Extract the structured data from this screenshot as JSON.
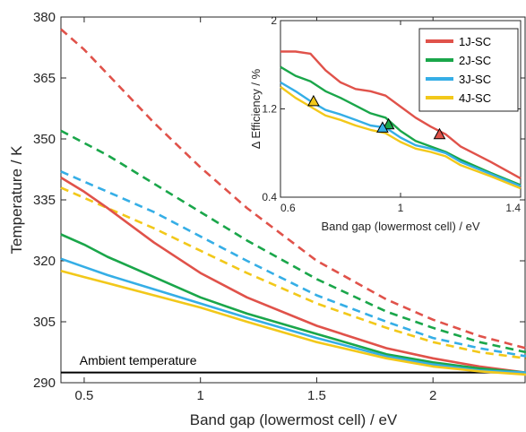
{
  "chart_data": [
    {
      "type": "line",
      "xlabel": "Band gap (lowermost cell) / eV",
      "ylabel": "Temperature / K",
      "xlim": [
        0.4,
        2.4
      ],
      "ylim": [
        290,
        380
      ],
      "xticks": [
        0.5,
        1,
        1.5,
        2
      ],
      "xtick_labels": [
        "0.5",
        "1",
        "1.5",
        "2"
      ],
      "yticks": [
        290,
        305,
        320,
        335,
        350,
        365,
        380
      ],
      "ytick_labels": [
        "290",
        "305",
        "320",
        "335",
        "350",
        "365",
        "380"
      ],
      "grid": false,
      "annotation": {
        "text": "Ambient temperature",
        "x": 0.48,
        "y": 293.5
      },
      "reference_line": {
        "y": 292.5,
        "color": "#000000"
      },
      "series": [
        {
          "name": "1J-SC",
          "style": "solid",
          "color": "#e0524a",
          "x": [
            0.4,
            0.5,
            0.6,
            0.8,
            1.0,
            1.2,
            1.5,
            1.8,
            2.0,
            2.2,
            2.4
          ],
          "y": [
            340.5,
            337,
            333,
            324.5,
            317,
            311,
            304,
            298.5,
            296,
            294,
            292.5
          ]
        },
        {
          "name": "2J-SC",
          "style": "solid",
          "color": "#1aa64a",
          "x": [
            0.4,
            0.5,
            0.6,
            0.8,
            1.0,
            1.2,
            1.5,
            1.8,
            2.0,
            2.2,
            2.4
          ],
          "y": [
            326.5,
            324,
            321,
            316,
            311,
            307,
            302,
            297,
            295,
            293.5,
            292.5
          ]
        },
        {
          "name": "3J-SC",
          "style": "solid",
          "color": "#35aee6",
          "x": [
            0.4,
            0.5,
            0.6,
            0.8,
            1.0,
            1.2,
            1.5,
            1.8,
            2.0,
            2.2,
            2.4
          ],
          "y": [
            320.5,
            318.5,
            316.5,
            313,
            309.5,
            306,
            301,
            296.5,
            294.5,
            293,
            292.5
          ]
        },
        {
          "name": "4J-SC",
          "style": "solid",
          "color": "#f2c81a",
          "x": [
            0.4,
            0.5,
            0.6,
            0.8,
            1.0,
            1.2,
            1.5,
            1.8,
            2.0,
            2.2,
            2.4
          ],
          "y": [
            317.5,
            316,
            314.5,
            311.5,
            308.5,
            305,
            300,
            296,
            294,
            292.8,
            292
          ]
        },
        {
          "name": "1J-SC (dashed)",
          "style": "dashed",
          "color": "#e0524a",
          "x": [
            0.4,
            0.5,
            0.6,
            0.8,
            1.0,
            1.2,
            1.5,
            1.8,
            2.0,
            2.2,
            2.4
          ],
          "y": [
            377,
            372,
            366,
            354,
            343,
            333,
            320,
            310.5,
            305.5,
            301.5,
            298.5
          ]
        },
        {
          "name": "2J-SC (dashed)",
          "style": "dashed",
          "color": "#1aa64a",
          "x": [
            0.4,
            0.5,
            0.6,
            0.8,
            1.0,
            1.2,
            1.5,
            1.8,
            2.0,
            2.2,
            2.4
          ],
          "y": [
            352,
            349,
            346,
            339,
            332,
            325,
            315.5,
            307.5,
            303.5,
            300,
            297.5
          ]
        },
        {
          "name": "3J-SC (dashed)",
          "style": "dashed",
          "color": "#35aee6",
          "x": [
            0.4,
            0.5,
            0.6,
            0.8,
            1.0,
            1.2,
            1.5,
            1.8,
            2.0,
            2.2,
            2.4
          ],
          "y": [
            342,
            339.5,
            337,
            332,
            326,
            320,
            311.5,
            305,
            301,
            298.5,
            296.5
          ]
        },
        {
          "name": "4J-SC (dashed)",
          "style": "dashed",
          "color": "#f2c81a",
          "x": [
            0.4,
            0.5,
            0.6,
            0.8,
            1.0,
            1.2,
            1.5,
            1.8,
            2.0,
            2.2,
            2.4
          ],
          "y": [
            338,
            335.5,
            333,
            328,
            322.5,
            317,
            309.5,
            303.5,
            300,
            297.5,
            296
          ]
        }
      ]
    },
    {
      "type": "line",
      "xlabel": "Band gap (lowermost cell) / eV",
      "ylabel": "Δ Efficiency / %",
      "xlim": [
        0.6,
        1.4
      ],
      "ylim": [
        0.4,
        2.0
      ],
      "xticks": [
        0.6,
        1.0,
        1.4
      ],
      "xtick_labels": [
        "0.6",
        "1",
        "1.4"
      ],
      "yticks": [
        0.4,
        1.2,
        2.0
      ],
      "ytick_labels": [
        "0.4",
        "1.2",
        "2"
      ],
      "grid": false,
      "legend": {
        "placement": "top-right",
        "entries": [
          "1J-SC",
          "2J-SC",
          "3J-SC",
          "4J-SC"
        ]
      },
      "series": [
        {
          "name": "1J-SC",
          "color": "#e0524a",
          "x": [
            0.6,
            0.65,
            0.7,
            0.75,
            0.8,
            0.85,
            0.9,
            0.95,
            1.0,
            1.05,
            1.1,
            1.15,
            1.2,
            1.3,
            1.4
          ],
          "y": [
            1.72,
            1.72,
            1.7,
            1.55,
            1.44,
            1.38,
            1.36,
            1.32,
            1.22,
            1.12,
            1.04,
            0.97,
            0.86,
            0.72,
            0.57
          ],
          "marker": {
            "x": 1.13,
            "y": 0.97
          }
        },
        {
          "name": "2J-SC",
          "color": "#1aa64a",
          "x": [
            0.6,
            0.65,
            0.7,
            0.75,
            0.8,
            0.85,
            0.9,
            0.95,
            1.0,
            1.05,
            1.1,
            1.15,
            1.2,
            1.3,
            1.4
          ],
          "y": [
            1.58,
            1.5,
            1.45,
            1.36,
            1.3,
            1.23,
            1.16,
            1.12,
            1.0,
            0.91,
            0.86,
            0.81,
            0.74,
            0.62,
            0.51
          ],
          "marker": {
            "x": 0.96,
            "y": 1.06
          }
        },
        {
          "name": "3J-SC",
          "color": "#35aee6",
          "x": [
            0.6,
            0.65,
            0.7,
            0.75,
            0.8,
            0.85,
            0.9,
            0.95,
            1.0,
            1.05,
            1.1,
            1.15,
            1.2,
            1.3,
            1.4
          ],
          "y": [
            1.44,
            1.36,
            1.27,
            1.19,
            1.15,
            1.1,
            1.05,
            1.03,
            0.94,
            0.87,
            0.84,
            0.8,
            0.72,
            0.61,
            0.5
          ],
          "marker": {
            "x": 0.94,
            "y": 1.03
          }
        },
        {
          "name": "4J-SC",
          "color": "#f2c81a",
          "x": [
            0.6,
            0.65,
            0.7,
            0.75,
            0.8,
            0.85,
            0.9,
            0.95,
            1.0,
            1.05,
            1.1,
            1.15,
            1.2,
            1.3,
            1.4
          ],
          "y": [
            1.4,
            1.3,
            1.22,
            1.14,
            1.1,
            1.05,
            1.01,
            0.98,
            0.9,
            0.84,
            0.81,
            0.77,
            0.69,
            0.59,
            0.48
          ],
          "marker": {
            "x": 0.71,
            "y": 1.27
          }
        }
      ]
    }
  ]
}
